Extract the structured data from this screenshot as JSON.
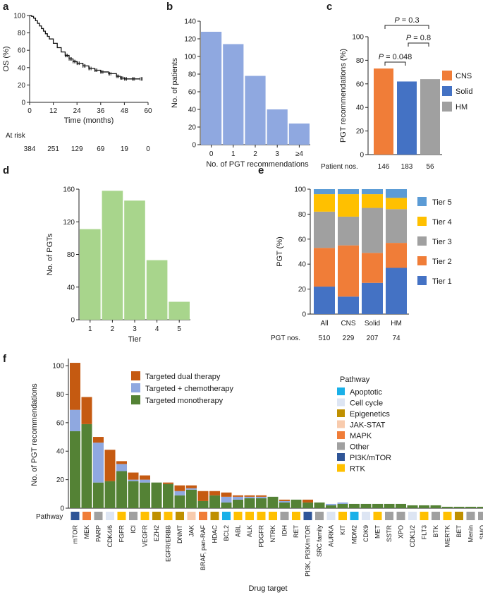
{
  "panels": {
    "a": "a",
    "b": "b",
    "c": "c",
    "d": "d",
    "e": "e",
    "f": "f"
  },
  "chart_data": [
    {
      "id": "a",
      "type": "line",
      "xlabel": "Time (months)",
      "ylabel": "OS (%)",
      "xlim": [
        0,
        60
      ],
      "ylim": [
        0,
        100
      ],
      "xticks": [
        0,
        12,
        24,
        36,
        48,
        60
      ],
      "yticks": [
        0,
        20,
        40,
        60,
        80,
        100
      ],
      "series": [
        {
          "name": "OS",
          "color": "#111111",
          "x": [
            0,
            1,
            2,
            3,
            4,
            5,
            6,
            7,
            8,
            9,
            10,
            12,
            14,
            16,
            18,
            20,
            22,
            24,
            27,
            30,
            33,
            36,
            40,
            44,
            46,
            48,
            52,
            56
          ],
          "y": [
            100,
            99,
            97,
            94,
            91,
            88,
            85,
            82,
            79,
            76,
            73,
            68,
            63,
            58,
            54,
            50,
            47,
            45,
            42,
            39,
            37,
            35,
            33,
            30,
            28,
            27,
            27,
            27
          ]
        }
      ],
      "at_risk_label": "At risk",
      "at_risk_x": [
        0,
        12,
        24,
        36,
        48,
        60
      ],
      "at_risk": [
        "384",
        "251",
        "129",
        "69",
        "19",
        "0"
      ]
    },
    {
      "id": "b",
      "type": "bar",
      "xlabel": "No. of PGT recommendations",
      "ylabel": "No. of patients",
      "categories": [
        "0",
        "1",
        "2",
        "3",
        "≥4"
      ],
      "values": [
        128,
        114,
        78,
        40,
        24
      ],
      "ylim": [
        0,
        140
      ],
      "yticks": [
        0,
        20,
        40,
        60,
        80,
        100,
        120,
        140
      ],
      "color": "#8fa8e0"
    },
    {
      "id": "c",
      "type": "bar",
      "ylabel": "PGT recommendations (%)",
      "categories": [
        "CNS",
        "Solid",
        "HM"
      ],
      "values": [
        73,
        62,
        64
      ],
      "colors": [
        "#f07d38",
        "#4472c4",
        "#a0a0a0"
      ],
      "ylim": [
        0,
        100
      ],
      "yticks": [
        0,
        20,
        40,
        60,
        80,
        100
      ],
      "patient_label": "Patient nos.",
      "patient_nos": [
        "146",
        "183",
        "56"
      ],
      "comparisons": [
        {
          "from": 0,
          "to": 1,
          "label_pre": "P",
          "label_post": " = 0.048",
          "level": 0
        },
        {
          "from": 1,
          "to": 2,
          "label_pre": "P",
          "label_post": " = 0.8",
          "level": 1
        },
        {
          "from": 0,
          "to": 2,
          "label_pre": "P",
          "label_post": " = 0.3",
          "level": 2
        }
      ]
    },
    {
      "id": "d",
      "type": "bar",
      "xlabel": "Tier",
      "ylabel": "No. of PGTs",
      "categories": [
        "1",
        "2",
        "3",
        "4",
        "5"
      ],
      "values": [
        111,
        158,
        146,
        73,
        22
      ],
      "ylim": [
        0,
        160
      ],
      "yticks": [
        0,
        40,
        80,
        120,
        160
      ],
      "color": "#a8d58c"
    },
    {
      "id": "e",
      "type": "bar",
      "stacked": true,
      "ylabel": "PGT (%)",
      "categories": [
        "All",
        "CNS",
        "Solid",
        "HM"
      ],
      "series": [
        {
          "name": "Tier 1",
          "color": "#4472c4",
          "values": [
            22,
            14,
            25,
            37
          ]
        },
        {
          "name": "Tier 2",
          "color": "#f07d38",
          "values": [
            31,
            41,
            24,
            20
          ]
        },
        {
          "name": "Tier 3",
          "color": "#a0a0a0",
          "values": [
            29,
            23,
            36,
            27
          ]
        },
        {
          "name": "Tier 4",
          "color": "#ffc000",
          "values": [
            14,
            18,
            11,
            9
          ]
        },
        {
          "name": "Tier 5",
          "color": "#5b9bd5",
          "values": [
            4,
            4,
            4,
            7
          ]
        }
      ],
      "ylim": [
        0,
        100
      ],
      "yticks": [
        0,
        20,
        40,
        60,
        80,
        100
      ],
      "pgt_label": "PGT nos.",
      "pgt_nos": [
        "510",
        "229",
        "207",
        "74"
      ]
    },
    {
      "id": "f",
      "type": "bar",
      "stacked": true,
      "xlabel": "Drug target",
      "ylabel": "No. of PGT recommendations",
      "ylim": [
        0,
        105
      ],
      "yticks": [
        0,
        20,
        40,
        60,
        80,
        100
      ],
      "categories": [
        "mTOR",
        "MEK",
        "PARP",
        "CDK4/6",
        "FGFR",
        "ICI",
        "VEGFR",
        "EZH2",
        "EGFR/ERBB",
        "DNMT",
        "JAK",
        "BRAF, pan-RAF",
        "HDAC",
        "BCL2",
        "ABL",
        "ALK",
        "PDGFR",
        "NTRK",
        "IDH",
        "RET",
        "PI3K, PI3K/mTOR",
        "SRC family",
        "AURKA",
        "KIT",
        "MDM2",
        "CDK9",
        "MET",
        "SSTR",
        "XPO",
        "CDK1/2",
        "FLT3",
        "BTK",
        "MERTK",
        "BET",
        "Menin",
        "SMO"
      ],
      "series": [
        {
          "name": "Targeted monotherapy",
          "color": "#548235",
          "values": [
            54,
            59,
            18,
            19,
            26,
            19,
            18,
            18,
            17,
            9,
            13,
            5,
            9,
            4,
            6,
            7,
            7,
            8,
            4,
            6,
            4,
            4,
            2,
            3,
            3,
            3,
            3,
            3,
            3,
            2,
            2,
            2,
            1,
            1,
            1,
            1
          ]
        },
        {
          "name": "Targeted + chemotherapy",
          "color": "#8fa8e0",
          "values": [
            15,
            0,
            28,
            0,
            5,
            1,
            2,
            0,
            0,
            3,
            1,
            0,
            0,
            4,
            2,
            1,
            1,
            0,
            1,
            0,
            0,
            0,
            1,
            1,
            0,
            0,
            0,
            0,
            0,
            0,
            0,
            0,
            0,
            0,
            0,
            0
          ]
        },
        {
          "name": "Targeted dual therapy",
          "color": "#c55a11",
          "values": [
            33,
            19,
            4,
            22,
            2,
            5,
            3,
            0,
            1,
            4,
            2,
            7,
            3,
            3,
            1,
            1,
            1,
            0,
            1,
            0,
            2,
            0,
            0,
            0,
            0,
            0,
            0,
            0,
            0,
            0,
            0,
            0,
            0,
            0,
            0,
            0
          ]
        }
      ],
      "pathway_label": "Pathway",
      "pathway_for_target": [
        "PI3K/mTOR",
        "MAPK",
        "Other",
        "Cell cycle",
        "RTK",
        "Other",
        "RTK",
        "Epigenetics",
        "RTK",
        "Epigenetics",
        "JAK-STAT",
        "MAPK",
        "Epigenetics",
        "Apoptotic",
        "RTK",
        "RTK",
        "RTK",
        "RTK",
        "Other",
        "RTK",
        "PI3K/mTOR",
        "Other",
        "Cell cycle",
        "RTK",
        "Apoptotic",
        "Cell cycle",
        "RTK",
        "Other",
        "Other",
        "Cell cycle",
        "RTK",
        "Other",
        "RTK",
        "Epigenetics",
        "Other",
        "Other"
      ],
      "pathways": [
        {
          "name": "Apoptotic",
          "color": "#1ab0e8"
        },
        {
          "name": "Cell cycle",
          "color": "#dde5f3"
        },
        {
          "name": "Epigenetics",
          "color": "#bf9000"
        },
        {
          "name": "JAK-STAT",
          "color": "#f8cbad"
        },
        {
          "name": "MAPK",
          "color": "#f07d38"
        },
        {
          "name": "Other",
          "color": "#a0a0a0"
        },
        {
          "name": "PI3K/mTOR",
          "color": "#2f5597"
        },
        {
          "name": "RTK",
          "color": "#ffc000"
        }
      ],
      "pathway_legend_title": "Pathway"
    }
  ]
}
